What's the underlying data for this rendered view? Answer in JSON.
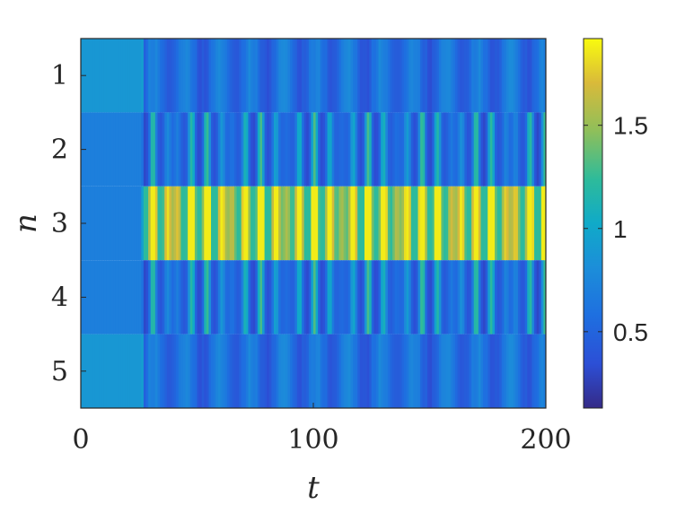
{
  "chart_data": {
    "type": "heatmap",
    "title": "",
    "xlabel": "t",
    "ylabel": "n",
    "xlim": [
      0,
      200
    ],
    "ylim": [
      0.5,
      5.5
    ],
    "y_reversed": true,
    "x_ticks": [
      "0",
      "100",
      "200"
    ],
    "x_tick_values": [
      0,
      100,
      200
    ],
    "y_ticks": [
      "1",
      "2",
      "3",
      "4",
      "5"
    ],
    "y_tick_values": [
      1,
      2,
      3,
      4,
      5
    ],
    "colormap": "parula",
    "colorbar": {
      "range": [
        0.13,
        1.92
      ],
      "ticks": [
        "0.5",
        "1",
        "1.5"
      ],
      "tick_values": [
        0.5,
        1.0,
        1.5
      ]
    },
    "rows": [
      {
        "n": 1,
        "t_sample": [
          0,
          26,
          28,
          34,
          40,
          55,
          70,
          85,
          100,
          120,
          140,
          160,
          180,
          195,
          200
        ],
        "values": [
          0.88,
          0.88,
          1.1,
          0.7,
          0.4,
          0.55,
          0.35,
          0.6,
          0.4,
          0.55,
          0.35,
          0.6,
          0.35,
          0.55,
          0.55
        ]
      },
      {
        "n": 2,
        "t_sample": [
          0,
          26,
          28,
          34,
          40,
          55,
          70,
          85,
          100,
          120,
          140,
          160,
          180,
          195,
          200
        ],
        "values": [
          0.7,
          0.7,
          0.3,
          0.4,
          1.2,
          0.3,
          1.2,
          0.3,
          1.2,
          0.3,
          1.2,
          0.3,
          1.2,
          0.3,
          0.3
        ]
      },
      {
        "n": 3,
        "t_sample": [
          0,
          26,
          28,
          34,
          40,
          55,
          70,
          85,
          100,
          120,
          140,
          160,
          180,
          195,
          200
        ],
        "values": [
          0.7,
          0.7,
          1.7,
          1.4,
          1.85,
          1.4,
          1.85,
          1.4,
          1.85,
          1.4,
          1.85,
          1.4,
          1.85,
          1.4,
          1.4
        ]
      },
      {
        "n": 4,
        "t_sample": [
          0,
          26,
          28,
          34,
          40,
          55,
          70,
          85,
          100,
          120,
          140,
          160,
          180,
          195,
          200
        ],
        "values": [
          0.7,
          0.7,
          0.3,
          0.4,
          1.2,
          0.3,
          1.2,
          0.3,
          1.2,
          0.3,
          1.2,
          0.3,
          1.2,
          0.3,
          0.3
        ]
      },
      {
        "n": 5,
        "t_sample": [
          0,
          26,
          28,
          34,
          40,
          55,
          70,
          85,
          100,
          120,
          140,
          160,
          180,
          195,
          200
        ],
        "values": [
          0.88,
          0.88,
          1.1,
          0.7,
          0.4,
          0.55,
          0.35,
          0.6,
          0.4,
          0.55,
          0.35,
          0.6,
          0.35,
          0.55,
          0.55
        ]
      }
    ]
  }
}
